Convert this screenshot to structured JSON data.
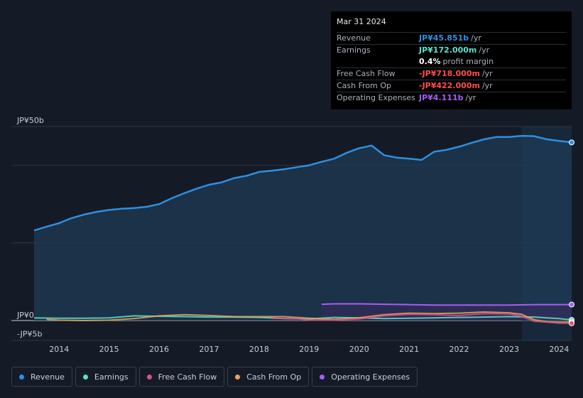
{
  "tooltip": {
    "date": "Mar 31 2024",
    "rows": [
      {
        "label": "Revenue",
        "value": "JP¥45.851b",
        "unit": "/yr",
        "color": "#2e8fe0"
      },
      {
        "label": "Earnings",
        "value": "JP¥172.000m",
        "unit": "/yr",
        "color": "#5fe0c8"
      },
      {
        "label": "",
        "value": "0.4%",
        "unit": "profit margin",
        "color": "#ffffff"
      },
      {
        "label": "Free Cash Flow",
        "value": "-JP¥718.000m",
        "unit": "/yr",
        "color": "#ff4d4d"
      },
      {
        "label": "Cash From Op",
        "value": "-JP¥422.000m",
        "unit": "/yr",
        "color": "#ff4d4d"
      },
      {
        "label": "Operating Expenses",
        "value": "JP¥4.111b",
        "unit": "/yr",
        "color": "#a55df3"
      }
    ]
  },
  "legend": [
    {
      "label": "Revenue",
      "color": "#2e8fe0"
    },
    {
      "label": "Earnings",
      "color": "#5fe0c8"
    },
    {
      "label": "Free Cash Flow",
      "color": "#d9508a"
    },
    {
      "label": "Cash From Op",
      "color": "#e8a35a"
    },
    {
      "label": "Operating Expenses",
      "color": "#a55df3"
    }
  ],
  "chart_data": {
    "type": "area",
    "title": "",
    "y_unit": "JP¥ billions",
    "ylim": [
      -5,
      50
    ],
    "y_tick_labels": [
      {
        "value": 50,
        "label": "JP¥50b"
      },
      {
        "value": 0,
        "label": "JP¥0"
      },
      {
        "value": -5,
        "label": "-JP¥5b"
      }
    ],
    "xlim": [
      2013.4,
      2024.3
    ],
    "x_ticks": [
      2014,
      2015,
      2016,
      2017,
      2018,
      2019,
      2020,
      2021,
      2022,
      2023,
      2024
    ],
    "x_tick_labels": [
      "2014",
      "2015",
      "2016",
      "2017",
      "2018",
      "2019",
      "2020",
      "2021",
      "2022",
      "2023",
      "2024"
    ],
    "forecast_start": 2023.25,
    "series": [
      {
        "name": "Revenue",
        "color": "#2e8fe0",
        "fill": true,
        "x": [
          2013.5,
          2013.75,
          2014.0,
          2014.25,
          2014.5,
          2014.75,
          2015.0,
          2015.25,
          2015.5,
          2015.75,
          2016.0,
          2016.25,
          2016.5,
          2016.75,
          2017.0,
          2017.25,
          2017.5,
          2017.75,
          2018.0,
          2018.25,
          2018.5,
          2018.75,
          2019.0,
          2019.25,
          2019.5,
          2019.75,
          2020.0,
          2020.25,
          2020.5,
          2020.75,
          2021.0,
          2021.25,
          2021.5,
          2021.75,
          2022.0,
          2022.25,
          2022.5,
          2022.75,
          2023.0,
          2023.25,
          2023.5,
          2023.75,
          2024.0,
          2024.25
        ],
        "values": [
          23.2,
          24.2,
          25.1,
          26.4,
          27.3,
          28.0,
          28.5,
          28.8,
          29.0,
          29.3,
          30.0,
          31.5,
          32.8,
          34.0,
          35.0,
          35.6,
          36.7,
          37.3,
          38.3,
          38.6,
          39.0,
          39.5,
          40.0,
          40.9,
          41.7,
          43.2,
          44.4,
          45.1,
          42.6,
          42.0,
          41.7,
          41.4,
          43.5,
          44.0,
          44.8,
          45.8,
          46.7,
          47.3,
          47.3,
          47.6,
          47.5,
          46.7,
          46.3,
          45.9
        ]
      },
      {
        "name": "Earnings",
        "color": "#5fe0c8",
        "fill": false,
        "x": [
          2013.5,
          2014.0,
          2014.5,
          2015.0,
          2015.5,
          2016.0,
          2016.5,
          2017.0,
          2017.5,
          2018.0,
          2018.5,
          2019.0,
          2019.5,
          2020.0,
          2020.5,
          2021.0,
          2021.5,
          2022.0,
          2022.5,
          2023.0,
          2023.5,
          2024.0,
          2024.25
        ],
        "values": [
          0.7,
          0.6,
          0.6,
          0.7,
          1.2,
          1.1,
          1.0,
          0.9,
          0.9,
          0.8,
          0.5,
          0.4,
          0.8,
          0.7,
          0.5,
          0.6,
          0.7,
          0.8,
          0.9,
          1.0,
          0.9,
          0.5,
          0.17
        ]
      },
      {
        "name": "Free Cash Flow",
        "color": "#d9508a",
        "fill": false,
        "x": [
          2018.25,
          2018.75,
          2019.0,
          2019.5,
          2020.0,
          2020.5,
          2021.0,
          2021.5,
          2022.0,
          2022.5,
          2023.0,
          2023.25,
          2023.5,
          2023.75,
          2024.0,
          2024.25
        ],
        "values": [
          0.6,
          0.5,
          0.1,
          0.1,
          0.4,
          1.2,
          1.6,
          1.5,
          1.3,
          1.8,
          1.7,
          1.1,
          -0.2,
          -0.4,
          -0.7,
          -0.72
        ]
      },
      {
        "name": "Cash From Op",
        "color": "#e8a35a",
        "fill": false,
        "x": [
          2013.75,
          2014.0,
          2014.5,
          2015.0,
          2015.5,
          2016.0,
          2016.5,
          2017.0,
          2017.5,
          2018.0,
          2018.5,
          2019.0,
          2019.5,
          2020.0,
          2020.5,
          2021.0,
          2021.5,
          2022.0,
          2022.5,
          2023.0,
          2023.25,
          2023.5,
          2023.75,
          2024.0,
          2024.25
        ],
        "values": [
          0.3,
          0.1,
          0.0,
          0.1,
          0.5,
          1.2,
          1.5,
          1.3,
          1.0,
          1.0,
          1.0,
          0.6,
          0.3,
          0.7,
          1.5,
          1.9,
          1.8,
          1.9,
          2.2,
          2.0,
          1.6,
          0.2,
          -0.3,
          -0.4,
          -0.42
        ]
      },
      {
        "name": "Operating Expenses",
        "color": "#a55df3",
        "fill": true,
        "x": [
          2019.25,
          2019.5,
          2020.0,
          2020.5,
          2021.0,
          2021.5,
          2022.0,
          2022.5,
          2023.0,
          2023.5,
          2024.0,
          2024.25
        ],
        "values": [
          4.2,
          4.3,
          4.3,
          4.2,
          4.1,
          4.0,
          4.0,
          4.0,
          4.0,
          4.1,
          4.1,
          4.11
        ]
      }
    ]
  }
}
